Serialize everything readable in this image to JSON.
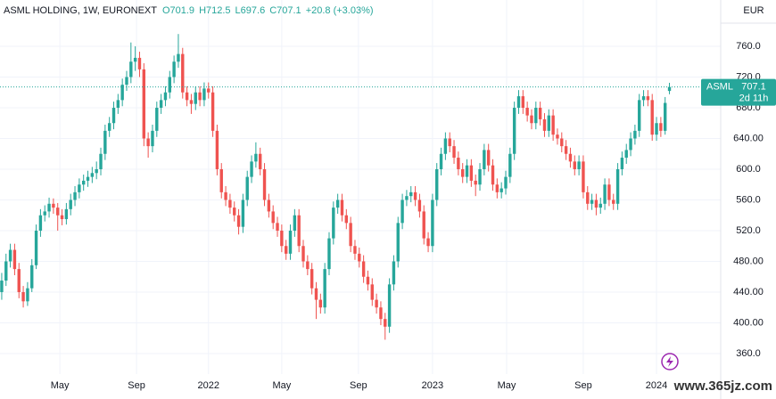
{
  "chart_data": {
    "type": "candlestick",
    "title": "ASML HOLDING, 1W, EURONEXT",
    "legend_values": [
      "O701.9",
      "H712.5",
      "L697.6",
      "C707.1",
      "+20.8 (+3.03%)"
    ],
    "currency": "EUR",
    "symbol": "ASML",
    "last_price": 707.1,
    "last_price_label": "707.1",
    "countdown": "2d 11h",
    "watermark": "www.365jz.com",
    "up_color": "#26a69a",
    "down_color": "#ef5350",
    "open": [
      440,
      455,
      480,
      495,
      470,
      440,
      428,
      445,
      475,
      520,
      540,
      545,
      555,
      550,
      540,
      535,
      548,
      560,
      570,
      580,
      585,
      590,
      595,
      600,
      620,
      650,
      660,
      680,
      690,
      710,
      720,
      740,
      745,
      730,
      640,
      630,
      650,
      680,
      690,
      700,
      720,
      740,
      750,
      700,
      690,
      685,
      700,
      690,
      705,
      700,
      650,
      600,
      570,
      560,
      550,
      540,
      525,
      560,
      590,
      610,
      620,
      600,
      560,
      545,
      530,
      520,
      500,
      490,
      520,
      540,
      500,
      480,
      470,
      445,
      430,
      420,
      470,
      510,
      550,
      560,
      540,
      530,
      500,
      490,
      480,
      460,
      450,
      430,
      420,
      405,
      395,
      450,
      480,
      530,
      560,
      565,
      570,
      560,
      545,
      510,
      500,
      560,
      600,
      620,
      640,
      630,
      615,
      600,
      590,
      605,
      585,
      580,
      600,
      625,
      605,
      580,
      570,
      575,
      590,
      620,
      680,
      695,
      680,
      670,
      660,
      680,
      665,
      650,
      670,
      645,
      640,
      630,
      620,
      610,
      600,
      610,
      570,
      555,
      560,
      550,
      555,
      580,
      560,
      555,
      600,
      615,
      625,
      640,
      650,
      690,
      695,
      690,
      645,
      660,
      650,
      701.9
    ],
    "high": [
      465,
      490,
      503,
      503,
      478,
      448,
      453,
      483,
      528,
      548,
      553,
      563,
      562,
      556,
      548,
      556,
      568,
      578,
      588,
      593,
      598,
      603,
      610,
      628,
      658,
      668,
      688,
      698,
      718,
      728,
      765,
      760,
      753,
      738,
      648,
      658,
      688,
      698,
      708,
      728,
      748,
      776,
      758,
      708,
      698,
      708,
      708,
      713,
      713,
      708,
      658,
      608,
      578,
      568,
      558,
      548,
      568,
      598,
      618,
      635,
      628,
      608,
      568,
      553,
      538,
      528,
      508,
      528,
      548,
      548,
      508,
      488,
      478,
      453,
      438,
      478,
      518,
      558,
      568,
      568,
      548,
      538,
      508,
      498,
      488,
      468,
      458,
      438,
      428,
      413,
      458,
      488,
      538,
      568,
      573,
      578,
      578,
      568,
      553,
      518,
      568,
      608,
      628,
      648,
      648,
      638,
      623,
      608,
      613,
      613,
      593,
      608,
      633,
      633,
      613,
      588,
      583,
      598,
      628,
      688,
      703,
      703,
      688,
      678,
      688,
      688,
      673,
      678,
      678,
      653,
      648,
      638,
      628,
      618,
      618,
      618,
      578,
      568,
      568,
      563,
      588,
      588,
      568,
      608,
      623,
      633,
      648,
      658,
      698,
      703,
      703,
      698,
      668,
      668,
      694,
      712.5
    ],
    "low": [
      430,
      448,
      472,
      462,
      432,
      420,
      422,
      440,
      470,
      512,
      532,
      537,
      542,
      520,
      527,
      528,
      540,
      552,
      562,
      572,
      577,
      582,
      587,
      592,
      612,
      642,
      652,
      672,
      682,
      702,
      712,
      728,
      720,
      630,
      615,
      622,
      642,
      672,
      682,
      692,
      712,
      732,
      692,
      682,
      672,
      677,
      682,
      682,
      692,
      642,
      592,
      562,
      552,
      542,
      532,
      515,
      517,
      552,
      582,
      602,
      592,
      552,
      537,
      522,
      512,
      492,
      482,
      482,
      512,
      492,
      472,
      462,
      437,
      405,
      412,
      412,
      462,
      502,
      542,
      532,
      522,
      492,
      482,
      472,
      452,
      442,
      422,
      412,
      397,
      378,
      387,
      442,
      472,
      522,
      552,
      557,
      552,
      537,
      502,
      492,
      492,
      552,
      592,
      612,
      622,
      607,
      592,
      582,
      582,
      577,
      565,
      572,
      592,
      597,
      572,
      562,
      562,
      567,
      582,
      612,
      672,
      672,
      662,
      652,
      652,
      657,
      642,
      642,
      637,
      632,
      622,
      612,
      602,
      592,
      592,
      562,
      547,
      547,
      540,
      542,
      547,
      552,
      547,
      547,
      592,
      607,
      617,
      632,
      642,
      682,
      682,
      637,
      637,
      642,
      645,
      697.6
    ],
    "close": [
      455,
      480,
      495,
      470,
      440,
      428,
      445,
      475,
      520,
      540,
      545,
      555,
      550,
      540,
      535,
      548,
      560,
      570,
      580,
      585,
      590,
      595,
      600,
      620,
      650,
      660,
      680,
      690,
      710,
      720,
      740,
      745,
      730,
      640,
      630,
      650,
      680,
      690,
      700,
      720,
      740,
      750,
      700,
      690,
      685,
      700,
      690,
      705,
      700,
      650,
      600,
      570,
      560,
      550,
      540,
      525,
      560,
      590,
      610,
      620,
      600,
      560,
      545,
      530,
      520,
      500,
      490,
      520,
      540,
      500,
      480,
      470,
      445,
      430,
      420,
      470,
      510,
      550,
      560,
      540,
      530,
      500,
      490,
      480,
      460,
      450,
      430,
      420,
      405,
      395,
      450,
      480,
      530,
      560,
      565,
      570,
      560,
      545,
      510,
      500,
      560,
      600,
      620,
      640,
      630,
      615,
      600,
      590,
      605,
      585,
      580,
      600,
      625,
      605,
      580,
      570,
      575,
      590,
      620,
      680,
      695,
      680,
      670,
      660,
      680,
      665,
      650,
      670,
      645,
      640,
      630,
      620,
      610,
      600,
      610,
      570,
      555,
      560,
      550,
      555,
      580,
      560,
      555,
      600,
      615,
      625,
      640,
      650,
      690,
      695,
      690,
      645,
      660,
      650,
      686.3,
      707.1
    ],
    "xlim": [
      -0.4,
      166.9
    ],
    "xticks": [
      {
        "value": 13.5,
        "label": "May"
      },
      {
        "value": 31.3,
        "label": "Sep"
      },
      {
        "value": 48,
        "label": "2022"
      },
      {
        "value": 65,
        "label": "May"
      },
      {
        "value": 82.8,
        "label": "Sep"
      },
      {
        "value": 100,
        "label": "2023"
      },
      {
        "value": 117.2,
        "label": "May"
      },
      {
        "value": 135,
        "label": "Sep"
      },
      {
        "value": 152,
        "label": "2024"
      }
    ],
    "ylim": [
      333.3,
      820.3
    ],
    "yticks": [
      {
        "value": 360,
        "label": "360.0"
      },
      {
        "value": 400,
        "label": "400.00"
      },
      {
        "value": 440,
        "label": "440.00"
      },
      {
        "value": 480,
        "label": "480.00"
      },
      {
        "value": 520,
        "label": "520.0"
      },
      {
        "value": 560,
        "label": "560.0"
      },
      {
        "value": 600,
        "label": "600.0"
      },
      {
        "value": 640,
        "label": "640.00"
      },
      {
        "value": 680,
        "label": "680.0"
      },
      {
        "value": 720,
        "label": "720.0"
      },
      {
        "value": 760,
        "label": "760.0"
      }
    ]
  }
}
